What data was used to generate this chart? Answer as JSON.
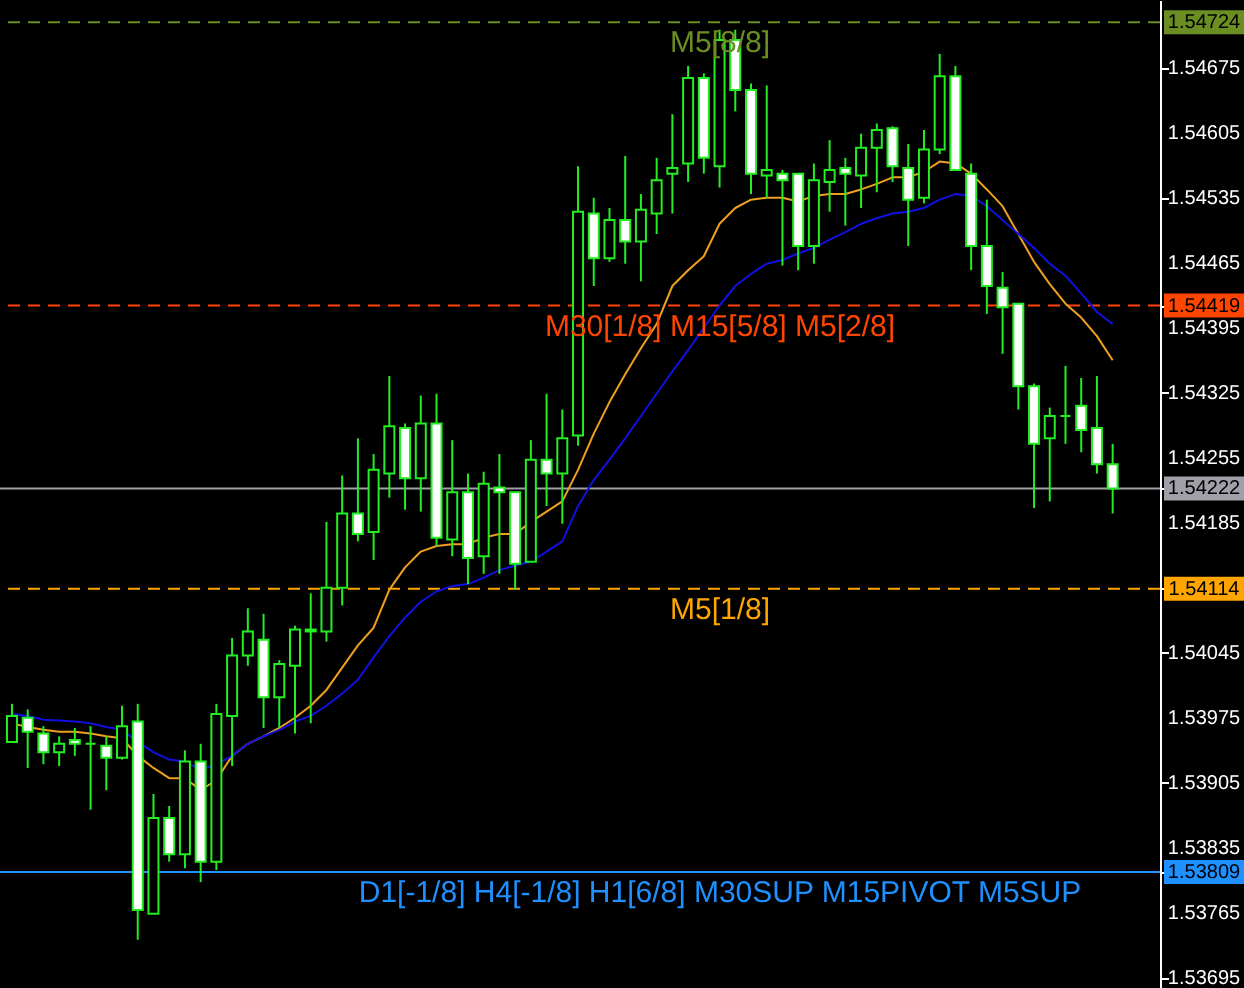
{
  "chart_data": {
    "type": "candlestick",
    "color": "#22ee22",
    "tick_labels": "y",
    "categories": [
      null,
      null,
      null,
      null,
      null,
      null,
      null,
      null,
      null,
      null,
      null,
      null,
      null,
      null,
      null,
      null,
      null,
      null,
      null,
      null,
      null,
      null,
      null,
      null,
      null,
      null,
      null,
      null,
      null,
      null,
      null,
      null,
      null,
      null,
      null,
      null,
      null,
      null,
      null,
      null,
      null,
      null,
      null,
      null,
      null,
      null,
      null,
      null,
      null,
      null,
      null,
      null,
      null,
      null,
      null,
      null,
      null,
      null,
      null,
      null,
      null,
      null,
      null,
      null,
      null,
      null,
      null,
      null,
      null,
      null,
      null
    ],
    "ohlc": [
      [
        1.53949,
        1.5399,
        1.53949,
        1.53977
      ],
      [
        1.53975,
        1.53984,
        1.53921,
        1.5396
      ],
      [
        1.53958,
        1.53966,
        1.53925,
        1.53938
      ],
      [
        1.53938,
        1.53955,
        1.53923,
        1.53947
      ],
      [
        1.53951,
        1.53964,
        1.53934,
        1.53947
      ],
      [
        1.53947,
        1.53966,
        1.53876,
        1.53947
      ],
      [
        1.53945,
        1.53955,
        1.53897,
        1.53932
      ],
      [
        1.53932,
        1.53988,
        1.5393,
        1.53966
      ],
      [
        1.53971,
        1.5399,
        1.53736,
        1.53768
      ],
      [
        1.53764,
        1.53893,
        1.53764,
        1.53867
      ],
      [
        1.53867,
        1.5388,
        1.5382,
        1.53828
      ],
      [
        1.53828,
        1.5394,
        1.53813,
        1.53928
      ],
      [
        1.53928,
        1.53947,
        1.53798,
        1.5382
      ],
      [
        1.5382,
        1.5399,
        1.53811,
        1.53979
      ],
      [
        1.53977,
        1.54061,
        1.53923,
        1.54042
      ],
      [
        1.54042,
        1.54093,
        1.54031,
        1.54068
      ],
      [
        1.54059,
        1.54087,
        1.53964,
        1.53997
      ],
      [
        1.53997,
        1.54037,
        1.53964,
        1.54033
      ],
      [
        1.54031,
        1.54074,
        1.53958,
        1.5407
      ],
      [
        1.54068,
        1.54109,
        1.53969,
        1.5407
      ],
      [
        1.54068,
        1.54186,
        1.54057,
        1.54115
      ],
      [
        1.54115,
        1.54236,
        1.54096,
        1.54195
      ],
      [
        1.54195,
        1.54276,
        1.54165,
        1.54173
      ],
      [
        1.54175,
        1.54259,
        1.54145,
        1.54242
      ],
      [
        1.54238,
        1.54343,
        1.54212,
        1.54289
      ],
      [
        1.54287,
        1.54292,
        1.54199,
        1.54233
      ],
      [
        1.54233,
        1.54322,
        1.54197,
        1.54292
      ],
      [
        1.54292,
        1.54324,
        1.5416,
        1.54169
      ],
      [
        1.54167,
        1.54274,
        1.54149,
        1.54218
      ],
      [
        1.54218,
        1.54238,
        1.54119,
        1.54147
      ],
      [
        1.54149,
        1.5424,
        1.5413,
        1.54227
      ],
      [
        1.54223,
        1.54259,
        1.5413,
        1.54218
      ],
      [
        1.54218,
        1.54218,
        1.54113,
        1.54141
      ],
      [
        1.54143,
        1.54274,
        1.54143,
        1.54253
      ],
      [
        1.54253,
        1.54324,
        1.54203,
        1.54238
      ],
      [
        1.54238,
        1.54307,
        1.54184,
        1.54276
      ],
      [
        1.54279,
        1.54569,
        1.54268,
        1.5452
      ],
      [
        1.54518,
        1.54535,
        1.5444,
        1.5447
      ],
      [
        1.5447,
        1.54524,
        1.54466,
        1.54511
      ],
      [
        1.54511,
        1.5458,
        1.54464,
        1.54488
      ],
      [
        1.54488,
        1.54539,
        1.54445,
        1.54522
      ],
      [
        1.54518,
        1.54578,
        1.54496,
        1.54554
      ],
      [
        1.54561,
        1.54625,
        1.54518,
        1.54567
      ],
      [
        1.54572,
        1.54677,
        1.54552,
        1.54664
      ],
      [
        1.54664,
        1.54669,
        1.54561,
        1.54578
      ],
      [
        1.54569,
        1.54716,
        1.54546,
        1.54705
      ],
      [
        1.54705,
        1.54716,
        1.54628,
        1.54651
      ],
      [
        1.54651,
        1.54658,
        1.54539,
        1.54561
      ],
      [
        1.54559,
        1.54656,
        1.54535,
        1.54565
      ],
      [
        1.54561,
        1.54565,
        1.54462,
        1.54554
      ],
      [
        1.54561,
        1.54561,
        1.54457,
        1.54483
      ],
      [
        1.54483,
        1.54572,
        1.54464,
        1.54554
      ],
      [
        1.54552,
        1.54597,
        1.5452,
        1.54565
      ],
      [
        1.54567,
        1.54578,
        1.54505,
        1.54561
      ],
      [
        1.54559,
        1.54604,
        1.54524,
        1.54589
      ],
      [
        1.54589,
        1.54615,
        1.54541,
        1.54608
      ],
      [
        1.5461,
        1.54612,
        1.54552,
        1.54569
      ],
      [
        1.54567,
        1.54593,
        1.54483,
        1.54533
      ],
      [
        1.54535,
        1.54608,
        1.54529,
        1.54587
      ],
      [
        1.54587,
        1.5469,
        1.54582,
        1.54666
      ],
      [
        1.54666,
        1.54677,
        1.54565,
        1.54565
      ],
      [
        1.54561,
        1.54572,
        1.54457,
        1.54483
      ],
      [
        1.54483,
        1.54533,
        1.5441,
        1.5444
      ],
      [
        1.54438,
        1.54455,
        1.54367,
        1.54417
      ],
      [
        1.54421,
        1.54421,
        1.54307,
        1.54332
      ],
      [
        1.54332,
        1.54335,
        1.54201,
        1.5427
      ],
      [
        1.54276,
        1.54309,
        1.54208,
        1.543
      ],
      [
        1.543,
        1.54354,
        1.5427,
        1.543
      ],
      [
        1.54311,
        1.54341,
        1.54261,
        1.54285
      ],
      [
        1.54287,
        1.54343,
        1.54238,
        1.54248
      ],
      [
        1.54248,
        1.5427,
        1.54195,
        1.54222
      ]
    ],
    "series": [
      {
        "type": "line",
        "color": "#f0a020",
        "values": [
          1.53969,
          1.53965,
          1.53962,
          1.5396,
          1.5396,
          1.53958,
          1.53955,
          1.53953,
          1.53934,
          1.53921,
          1.5391,
          1.5391,
          1.53897,
          1.53908,
          1.53934,
          1.53947,
          1.53955,
          1.53964,
          1.53975,
          1.53988,
          1.54005,
          1.54029,
          1.54053,
          1.54072,
          1.54113,
          1.54137,
          1.54154,
          1.5416,
          1.54162,
          1.54162,
          1.54169,
          1.54173,
          1.54173,
          1.54186,
          1.54197,
          1.54208,
          1.54242,
          1.54281,
          1.54315,
          1.54345,
          1.54373,
          1.54399,
          1.5444,
          1.54457,
          1.54472,
          1.54507,
          1.54524,
          1.54533,
          1.54535,
          1.54535,
          1.54531,
          1.54537,
          1.54539,
          1.54539,
          1.54544,
          1.5455,
          1.54557,
          1.54557,
          1.54563,
          1.54574,
          1.54572,
          1.54561,
          1.54544,
          1.54526,
          1.54496,
          1.54466,
          1.54442,
          1.54421,
          1.54406,
          1.54386,
          1.5436
        ]
      },
      {
        "type": "line",
        "color": "#1010e0",
        "values": [
          1.53979,
          1.53977,
          1.53973,
          1.53972,
          1.53971,
          1.53969,
          1.53965,
          1.53962,
          1.53949,
          1.53938,
          1.5393,
          1.53928,
          1.53919,
          1.53925,
          1.53934,
          1.53947,
          1.53955,
          1.53962,
          1.53971,
          1.53977,
          1.53988,
          1.54001,
          1.54016,
          1.5404,
          1.54063,
          1.54083,
          1.541,
          1.54111,
          1.54117,
          1.54119,
          1.54126,
          1.54134,
          1.54139,
          1.54143,
          1.54154,
          1.54165,
          1.54203,
          1.54231,
          1.54253,
          1.54276,
          1.543,
          1.54324,
          1.54348,
          1.54371,
          1.54395,
          1.54419,
          1.5444,
          1.54453,
          1.54464,
          1.54468,
          1.54475,
          1.54481,
          1.5449,
          1.54498,
          1.54507,
          1.54513,
          1.54518,
          1.5452,
          1.54524,
          1.54533,
          1.54539,
          1.54537,
          1.54526,
          1.54511,
          1.54496,
          1.54481,
          1.54464,
          1.54451,
          1.54432,
          1.54412,
          1.54399
        ]
      }
    ],
    "ylim": [
      1.53684,
      1.54748
    ],
    "yticks": [
      1.53695,
      1.53765,
      1.53809,
      1.53835,
      1.53905,
      1.53975,
      1.54045,
      1.54114,
      {
        "value": 1.54115,
        "label": null
      },
      1.54185,
      1.54222,
      1.54255,
      1.54325,
      1.54395,
      1.54419,
      1.54465,
      1.54535,
      1.54605,
      1.54675,
      1.54724
    ],
    "ref_lines": [
      {
        "axis": "y",
        "value": 1.54724,
        "label": "M5[8/8]",
        "color": "#6b8e23",
        "line_style": "dashed"
      },
      {
        "axis": "y",
        "value": 1.54419,
        "label": "M30[1/8] M15[5/8] M5[2/8]",
        "color": "#ff4500",
        "line_style": "dashed"
      },
      {
        "axis": "y",
        "value": 1.54222,
        "label": null,
        "color": "#a0a0a8",
        "line_style": "solid"
      },
      {
        "axis": "y",
        "value": 1.54114,
        "label": "M5[1/8]",
        "color": "#ffa500",
        "line_style": "dashed"
      },
      {
        "axis": "y",
        "value": 1.53809,
        "label": "D1[-1/8] H4[-1/8] H1[6/8] M30SUP M15PIVOT M5SUP",
        "color": "#1e90ff",
        "line_style": "solid"
      }
    ]
  }
}
